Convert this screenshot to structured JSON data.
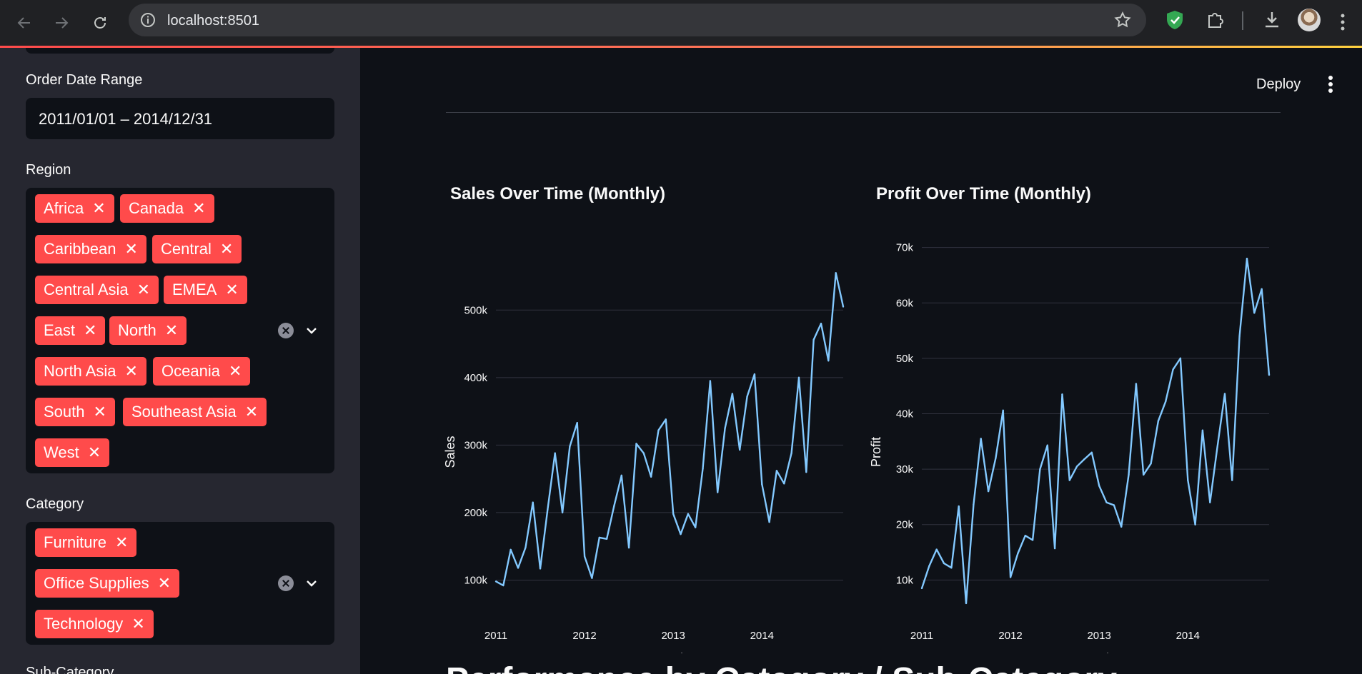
{
  "browser": {
    "url": "localhost:8501"
  },
  "header": {
    "deploy_label": "Deploy"
  },
  "sidebar": {
    "date_range": {
      "label": "Order Date Range",
      "value": "2011/01/01 – 2014/12/31"
    },
    "region": {
      "label": "Region",
      "chips": [
        "Africa",
        "Canada",
        "Caribbean",
        "Central",
        "Central Asia",
        "EMEA",
        "East",
        "North",
        "North Asia",
        "Oceania",
        "South",
        "Southeast Asia",
        "West"
      ]
    },
    "category": {
      "label": "Category",
      "chips": [
        "Furniture",
        "Office Supplies",
        "Technology"
      ]
    },
    "sub_category": {
      "label": "Sub-Category"
    },
    "chip_remove_glyph": "✕"
  },
  "main": {
    "bottom_heading": "Performance by Category / Sub-Category"
  },
  "colors": {
    "line": "#83c9ff",
    "chip": "#ff4b4b",
    "accent": "#ff4b4b"
  },
  "chart_data": [
    {
      "type": "line",
      "title": "Sales Over Time (Monthly)",
      "xlabel": "Month",
      "ylabel": "Sales",
      "x_ticks": [
        "2011",
        "2012",
        "2013",
        "2014"
      ],
      "y_ticks": [
        100000,
        200000,
        300000,
        400000,
        500000
      ],
      "y_tick_labels": [
        "100k",
        "200k",
        "300k",
        "400k",
        "500k"
      ],
      "ylim": [
        55000,
        605000
      ],
      "grid": true,
      "series": [
        {
          "values": [
            98000,
            92000,
            145000,
            118000,
            148000,
            215000,
            117000,
            205000,
            288000,
            200000,
            298000,
            333000,
            135000,
            103000,
            163000,
            161000,
            210000,
            255000,
            148000,
            302000,
            288000,
            253000,
            322000,
            338000,
            198000,
            168000,
            198000,
            178000,
            265000,
            395000,
            230000,
            325000,
            376000,
            293000,
            372000,
            405000,
            242000,
            186000,
            262000,
            243000,
            288000,
            400000,
            260000,
            456000,
            480000,
            425000,
            555000,
            505000
          ]
        }
      ]
    },
    {
      "type": "line",
      "title": "Profit Over Time (Monthly)",
      "xlabel": "Month",
      "ylabel": "Profit",
      "x_ticks": [
        "2011",
        "2012",
        "2013",
        "2014"
      ],
      "y_ticks": [
        10000,
        20000,
        30000,
        40000,
        50000,
        60000,
        70000
      ],
      "y_tick_labels": [
        "10k",
        "20k",
        "30k",
        "40k",
        "50k",
        "60k",
        "70k"
      ],
      "ylim": [
        4500,
        71500
      ],
      "grid": true,
      "series": [
        {
          "values": [
            8500,
            12500,
            15500,
            13000,
            12200,
            23300,
            5800,
            23600,
            35500,
            26000,
            32000,
            40600,
            10500,
            14800,
            18000,
            17200,
            30000,
            34300,
            15700,
            43500,
            28000,
            30500,
            31800,
            33000,
            27000,
            24000,
            23500,
            19600,
            29000,
            45400,
            29000,
            31000,
            38700,
            42200,
            48000,
            50000,
            28000,
            20000,
            37000,
            24000,
            34000,
            43600,
            28000,
            54000,
            68000,
            58200,
            62500,
            47000
          ]
        }
      ]
    }
  ]
}
